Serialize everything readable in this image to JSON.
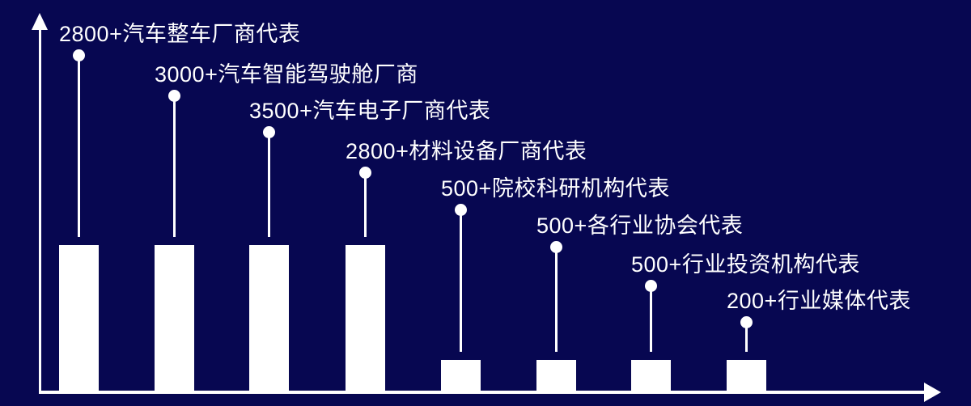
{
  "colors": {
    "background": "#070751",
    "foreground": "#ffffff",
    "bar": "#ffffff"
  },
  "chart_data": {
    "type": "bar",
    "style": "lollipop-annotated-bars",
    "title": "",
    "xlabel": "",
    "ylabel": "",
    "legend": false,
    "grid": false,
    "axes": {
      "y_arrow_up": true,
      "x_arrow_right": true
    },
    "value_suffix": "+",
    "categories": [
      "汽车整车厂商代表",
      "汽车智能驾驶舱厂商",
      "汽车电子厂商代表",
      "材料设备厂商代表",
      "院校科研机构代表",
      "各行业协会代表",
      "行业投资机构代表",
      "行业媒体代表"
    ],
    "values": [
      2800,
      3000,
      3500,
      2800,
      500,
      500,
      500,
      200
    ],
    "labels": [
      "2800+汽车整车厂商代表",
      "3000+汽车智能驾驶舱厂商",
      "3500+汽车电子厂商代表",
      "2800+材料设备厂商代表",
      "500+院校科研机构代表",
      "500+各行业协会代表",
      "500+行业投资机构代表",
      "200+行业媒体代表"
    ],
    "bar_size_groups": [
      "tall",
      "tall",
      "tall",
      "tall",
      "short",
      "short",
      "short",
      "short"
    ]
  }
}
